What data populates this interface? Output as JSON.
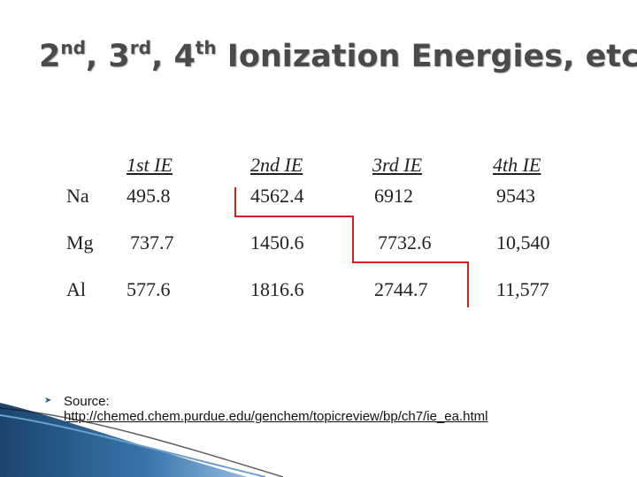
{
  "slide": {
    "title": {
      "n1": "2",
      "s1": "nd",
      "sep1": ", ",
      "n2": "3",
      "s2": "rd",
      "sep2": ", ",
      "n3": "4",
      "s3": "th",
      "rest": " Ionization Energies, etc."
    },
    "table": {
      "headers": [
        "1st IE",
        "2nd IE",
        "3rd IE",
        "4th IE"
      ],
      "rows": [
        {
          "element": "Na",
          "values": [
            "495.8",
            "4562.4",
            "6912",
            "9543"
          ]
        },
        {
          "element": "Mg",
          "values": [
            "737.7",
            "1450.6",
            "7732.6",
            "10,540"
          ]
        },
        {
          "element": "Al",
          "values": [
            "577.6",
            "1816.6",
            "2744.7",
            "11,577"
          ]
        }
      ],
      "step_line_color": "#d42020"
    },
    "source": {
      "label": "Source:",
      "url": "http://chemed.chem.purdue.edu/genchem/topicreview/bp/ch7/ie_ea.html"
    },
    "bullet_icon": "bullet-arrow-icon",
    "accent_color": "#1f4e79"
  }
}
